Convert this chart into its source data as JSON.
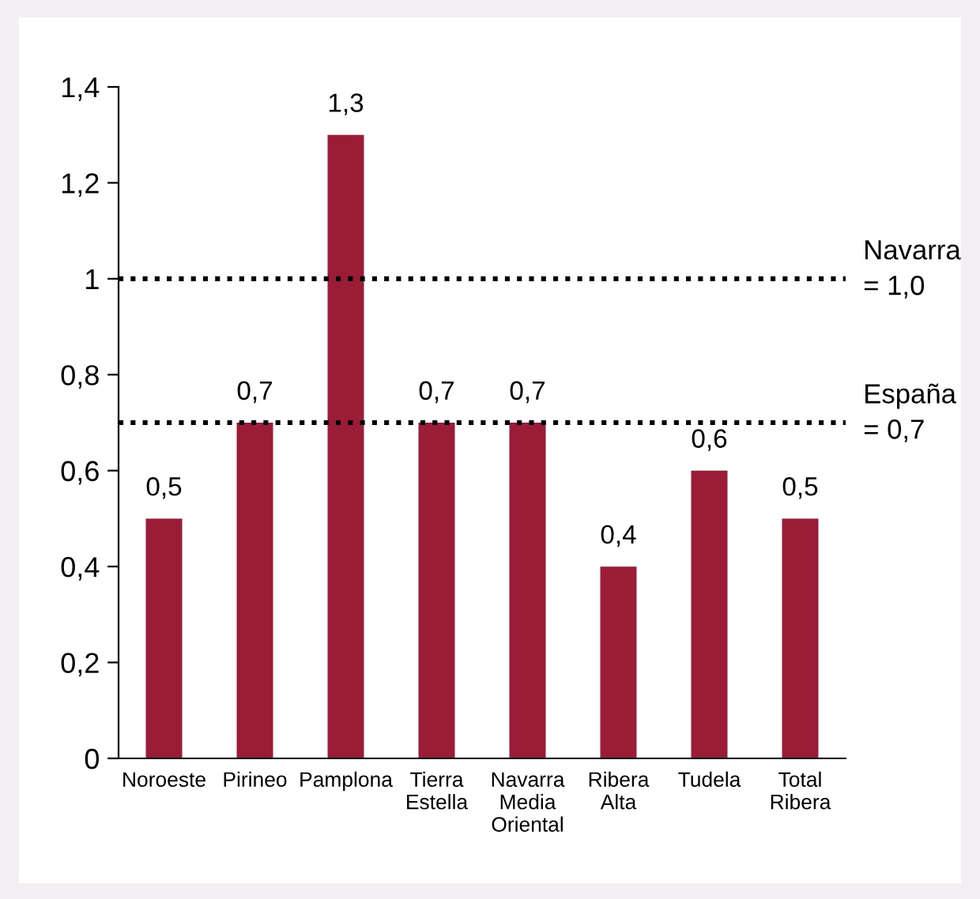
{
  "chart_data": {
    "type": "bar",
    "categories": [
      "Noroeste",
      "Pirineo",
      "Pamplona",
      "Tierra\nEstella",
      "Navarra\nMedia\nOriental",
      "Ribera\nAlta",
      "Tudela",
      "Total\nRibera"
    ],
    "values": [
      0.5,
      0.7,
      1.3,
      0.7,
      0.7,
      0.4,
      0.6,
      0.5
    ],
    "value_labels": [
      "0,5",
      "0,7",
      "1,3",
      "0,7",
      "0,7",
      "0,4",
      "0,6",
      "0,5"
    ],
    "color": "#9b1c37",
    "ylim": [
      0,
      1.4
    ],
    "yticks": [
      {
        "value": 0,
        "label": "0"
      },
      {
        "value": 0.2,
        "label": "0,2"
      },
      {
        "value": 0.4,
        "label": "0,4"
      },
      {
        "value": 0.6,
        "label": "0,6"
      },
      {
        "value": 0.8,
        "label": "0,8"
      },
      {
        "value": 1,
        "label": "1"
      },
      {
        "value": 1.2,
        "label": "1,2"
      },
      {
        "value": 1.4,
        "label": "1,4"
      }
    ],
    "ref_lines": [
      {
        "axis": "y",
        "value": 1.0,
        "label": "Navarra\n= 1,0",
        "color": "#000000",
        "line_style": "dotted"
      },
      {
        "axis": "y",
        "value": 0.7,
        "label": "España\n= 0,7",
        "color": "#000000",
        "line_style": "dotted"
      }
    ],
    "grid": false,
    "legend": false
  }
}
